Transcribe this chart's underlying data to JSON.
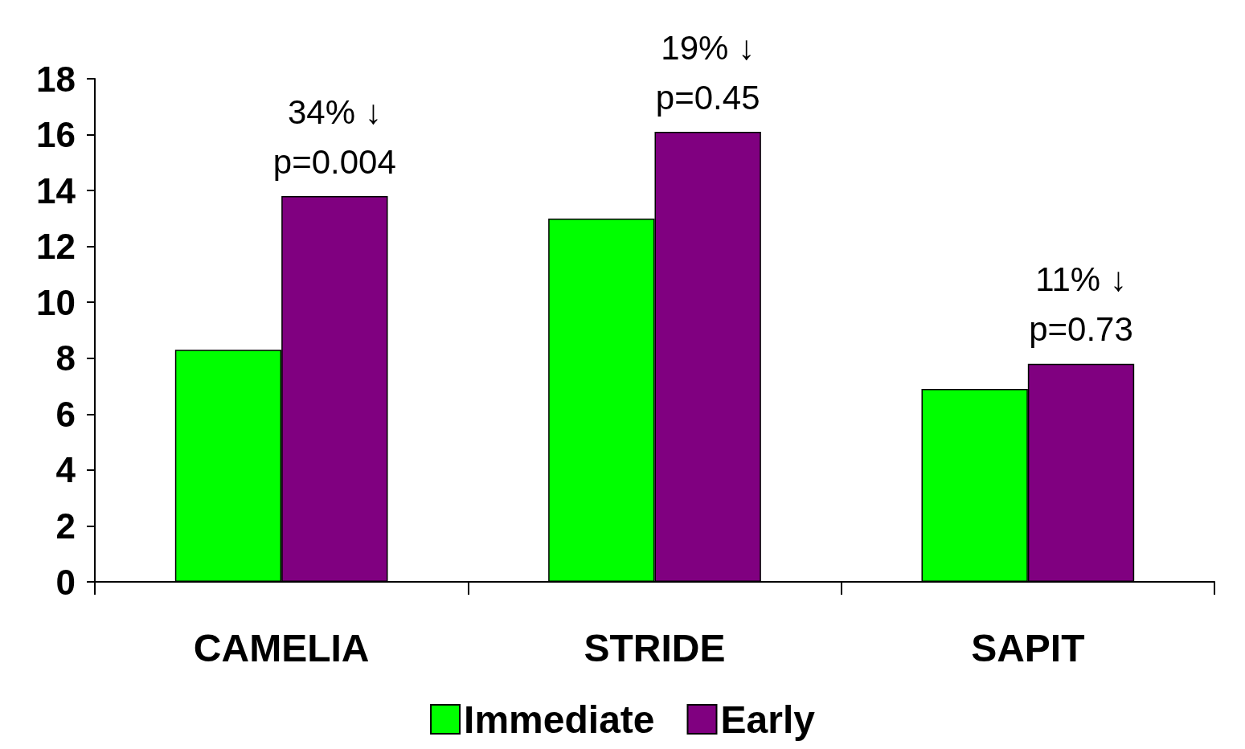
{
  "chart_data": {
    "type": "bar",
    "categories": [
      "CAMELIA",
      "STRIDE",
      "SAPIT"
    ],
    "series": [
      {
        "name": "Immediate",
        "color": "#00ff00",
        "values": [
          8.3,
          13.0,
          6.9
        ]
      },
      {
        "name": "Early",
        "color": "#800080",
        "values": [
          13.8,
          16.1,
          7.8
        ]
      }
    ],
    "ylim": [
      0,
      18
    ],
    "yticks": [
      0,
      2,
      4,
      6,
      8,
      10,
      12,
      14,
      16,
      18
    ],
    "grid": false,
    "legend": "bottom",
    "annotations": [
      {
        "text": "34% ↓\np=0.004",
        "x": "CAMELIA",
        "y": 13.8
      },
      {
        "text": "19% ↓\np=0.45",
        "x": "STRIDE",
        "y": 16.1
      },
      {
        "text": "11% ↓\np=0.73",
        "x": "SAPIT",
        "y": 7.8
      }
    ]
  }
}
